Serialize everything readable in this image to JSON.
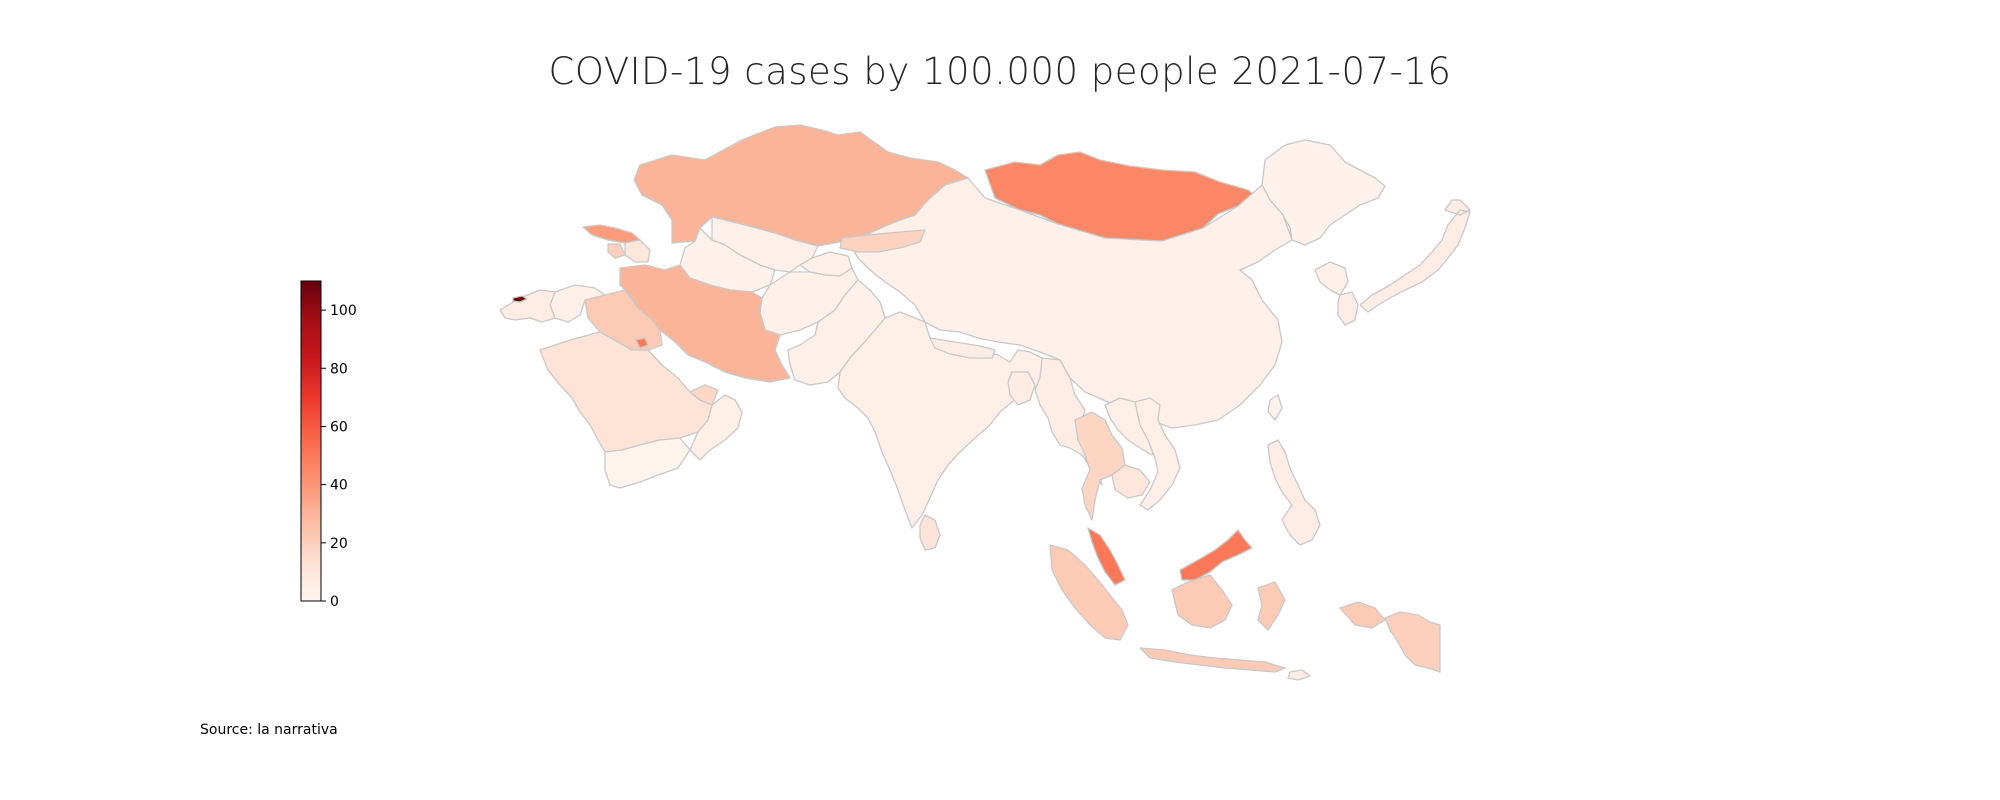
{
  "title": "COVID-19 cases by 100.000 people 2021-07-16",
  "source": "Source: la narrativa",
  "colorbar": {
    "min": 0,
    "max": 110,
    "ticks": [
      0,
      20,
      40,
      60,
      80,
      100
    ],
    "tick_labels": [
      "0",
      "20",
      "40",
      "60",
      "80",
      "100"
    ],
    "colormap": [
      "#fff5f0",
      "#fee0d2",
      "#fcbba1",
      "#fc9272",
      "#fb6a4a",
      "#ef3b2c",
      "#cb181d",
      "#a50f15",
      "#67000d"
    ]
  },
  "colors": {
    "border": "#c8c8c8",
    "background": "#ffffff"
  },
  "chart_data": {
    "type": "choropleth",
    "title": "COVID-19 cases by 100.000 people 2021-07-16",
    "region": "Asia",
    "value_range": [
      0,
      110
    ],
    "regions": [
      {
        "name": "Kazakhstan",
        "value": 30
      },
      {
        "name": "Mongolia",
        "value": 45
      },
      {
        "name": "Russia",
        "value": 2
      },
      {
        "name": "China",
        "value": 3
      },
      {
        "name": "Kyrgyzstan",
        "value": 19
      },
      {
        "name": "Uzbekistan",
        "value": 3
      },
      {
        "name": "Turkmenistan",
        "value": 2
      },
      {
        "name": "Tajikistan",
        "value": 3
      },
      {
        "name": "Afghanistan",
        "value": 3
      },
      {
        "name": "Pakistan",
        "value": 3
      },
      {
        "name": "India",
        "value": 4
      },
      {
        "name": "Nepal",
        "value": 5
      },
      {
        "name": "Bangladesh",
        "value": 6
      },
      {
        "name": "Myanmar",
        "value": 5
      },
      {
        "name": "Sri Lanka",
        "value": 11
      },
      {
        "name": "Iran",
        "value": 30
      },
      {
        "name": "Iraq",
        "value": 22
      },
      {
        "name": "Syria",
        "value": 3
      },
      {
        "name": "Turkey",
        "value": 6
      },
      {
        "name": "Georgia",
        "value": 38
      },
      {
        "name": "Armenia",
        "value": 20
      },
      {
        "name": "Azerbaijan",
        "value": 10
      },
      {
        "name": "Cyprus",
        "value": 110
      },
      {
        "name": "Saudi Arabia",
        "value": 12
      },
      {
        "name": "Yemen",
        "value": 1
      },
      {
        "name": "Oman",
        "value": 4
      },
      {
        "name": "United Arab Emirates",
        "value": 17
      },
      {
        "name": "Kuwait",
        "value": 50
      },
      {
        "name": "Thailand",
        "value": 18
      },
      {
        "name": "Laos",
        "value": 4
      },
      {
        "name": "Vietnam",
        "value": 4
      },
      {
        "name": "Cambodia",
        "value": 10
      },
      {
        "name": "Malaysia",
        "value": 50
      },
      {
        "name": "Indonesia",
        "value": 22
      },
      {
        "name": "Philippines",
        "value": 5
      },
      {
        "name": "Papua New Guinea",
        "value": 20
      },
      {
        "name": "Timor-Leste",
        "value": 5
      },
      {
        "name": "Japan",
        "value": 5
      },
      {
        "name": "South Korea",
        "value": 5
      },
      {
        "name": "North Korea",
        "value": 3
      },
      {
        "name": "Taiwan",
        "value": 2
      }
    ]
  }
}
